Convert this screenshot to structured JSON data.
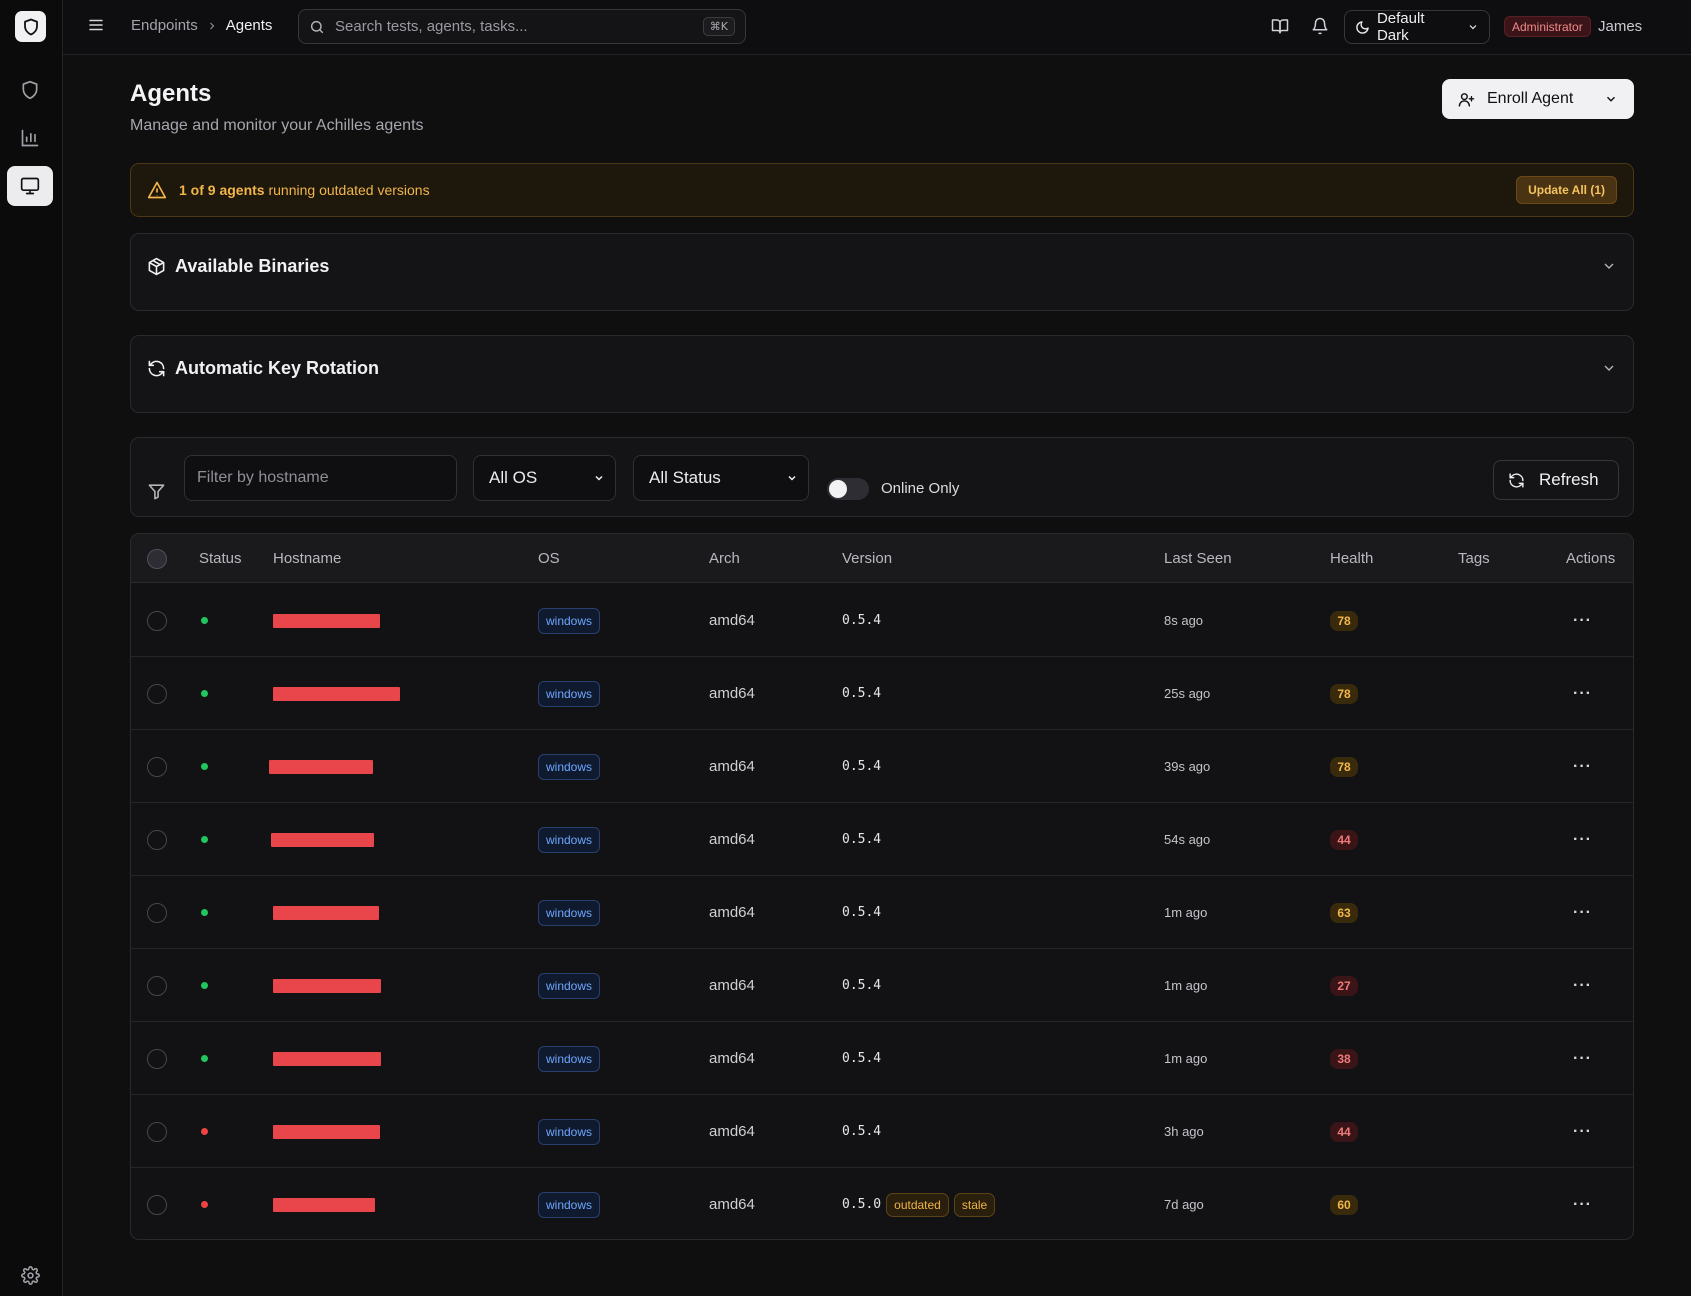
{
  "header": {
    "breadcrumb": [
      "Endpoints",
      "Agents"
    ],
    "search_placeholder": "Search tests, agents, tasks...",
    "search_shortcut": "⌘K",
    "theme_label": "Default Dark",
    "role_badge": "Administrator",
    "user_name": "James"
  },
  "sidebar": {
    "items": [
      {
        "icon": "shield-icon",
        "active": false
      },
      {
        "icon": "bar-chart-icon",
        "active": false
      },
      {
        "icon": "monitor-icon",
        "active": true
      }
    ],
    "footer_icon": "settings-icon"
  },
  "page": {
    "title": "Agents",
    "subtitle": "Manage and monitor your Achilles agents",
    "enroll_label": "Enroll Agent"
  },
  "alert": {
    "count_text": "1 of 9 agents",
    "rest_text": " running outdated versions",
    "button_label": "Update All (1)"
  },
  "sections": {
    "binaries": "Available Binaries",
    "rotation": "Automatic Key Rotation"
  },
  "filters": {
    "hostname_placeholder": "Filter by hostname",
    "os_selected": "All OS",
    "status_selected": "All Status",
    "online_only_label": "Online Only",
    "refresh_label": "Refresh"
  },
  "table": {
    "columns": {
      "status": "Status",
      "hostname": "Hostname",
      "os": "OS",
      "arch": "Arch",
      "version": "Version",
      "last_seen": "Last Seen",
      "health": "Health",
      "tags": "Tags",
      "actions": "Actions"
    },
    "rows": [
      {
        "status": "online",
        "os": "windows",
        "arch": "amd64",
        "version": "0.5.4",
        "flags": [],
        "last_seen": "8s ago",
        "health": "78",
        "health_level": "amber"
      },
      {
        "status": "online",
        "os": "windows",
        "arch": "amd64",
        "version": "0.5.4",
        "flags": [],
        "last_seen": "25s ago",
        "health": "78",
        "health_level": "amber"
      },
      {
        "status": "online",
        "os": "windows",
        "arch": "amd64",
        "version": "0.5.4",
        "flags": [],
        "last_seen": "39s ago",
        "health": "78",
        "health_level": "amber"
      },
      {
        "status": "online",
        "os": "windows",
        "arch": "amd64",
        "version": "0.5.4",
        "flags": [],
        "last_seen": "54s ago",
        "health": "44",
        "health_level": "red"
      },
      {
        "status": "online",
        "os": "windows",
        "arch": "amd64",
        "version": "0.5.4",
        "flags": [],
        "last_seen": "1m ago",
        "health": "63",
        "health_level": "amber"
      },
      {
        "status": "online",
        "os": "windows",
        "arch": "amd64",
        "version": "0.5.4",
        "flags": [],
        "last_seen": "1m ago",
        "health": "27",
        "health_level": "red"
      },
      {
        "status": "online",
        "os": "windows",
        "arch": "amd64",
        "version": "0.5.4",
        "flags": [],
        "last_seen": "1m ago",
        "health": "38",
        "health_level": "red"
      },
      {
        "status": "offline",
        "os": "windows",
        "arch": "amd64",
        "version": "0.5.4",
        "flags": [],
        "last_seen": "3h ago",
        "health": "44",
        "health_level": "red"
      },
      {
        "status": "offline",
        "os": "windows",
        "arch": "amd64",
        "version": "0.5.0",
        "flags": [
          "outdated",
          "stale"
        ],
        "last_seen": "7d ago",
        "health": "60",
        "health_level": "amber"
      }
    ]
  },
  "colors": {
    "online": "#22c55e",
    "offline": "#ef4444",
    "warning": "#f2b64a",
    "redaction": "#e8464a"
  }
}
